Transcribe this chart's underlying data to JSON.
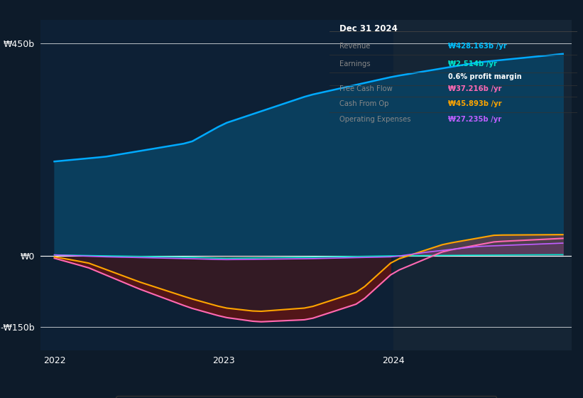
{
  "bg_color": "#0d1b2a",
  "plot_bg_color": "#0d2035",
  "plot_bg_right_color": "#152535",
  "title": "Dec 31 2024",
  "info_box": {
    "Revenue": {
      "value": "₩428.163b /yr",
      "color": "#00bfff"
    },
    "Earnings": {
      "value": "₩2.514b /yr",
      "color": "#00e5cc"
    },
    "profit_margin": "0.6% profit margin",
    "Free Cash Flow": {
      "value": "₩37.216b /yr",
      "color": "#ff69b4"
    },
    "Cash From Op": {
      "value": "₩45.893b /yr",
      "color": "#ffa500"
    },
    "Operating Expenses": {
      "value": "₩27.235b /yr",
      "color": "#bf5fff"
    }
  },
  "ylim": [
    -200,
    500
  ],
  "revenue_color": "#00aaff",
  "revenue_fill_color": "#0a4060",
  "earnings_color": "#00e5cc",
  "fcf_color": "#ff69b4",
  "cashop_color": "#ffa500",
  "opex_color": "#bf5fff",
  "dark_red_fill": "#5a1515",
  "right_fill_color": "#6a3535"
}
